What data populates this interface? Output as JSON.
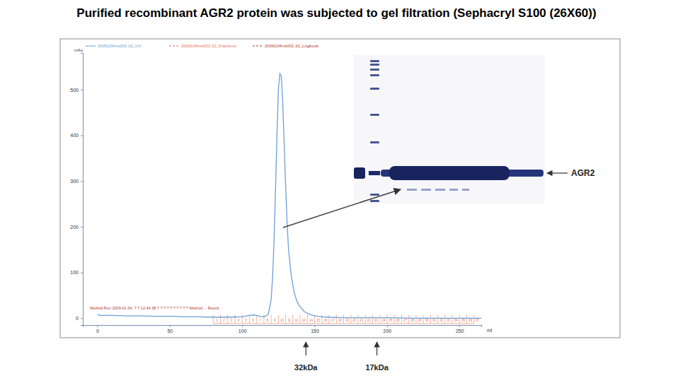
{
  "chart_data": {
    "type": "line",
    "title": "Purified recombinant AGR2 protein was subjected to gel filtration (Sephacryl S100 (26X60))",
    "xlabel": "ml",
    "ylabel": "mAu",
    "x": [
      0,
      2,
      10,
      20,
      30,
      40,
      50,
      60,
      70,
      80,
      90,
      100,
      105,
      108,
      110,
      112,
      114,
      116,
      118,
      120,
      121,
      122,
      123,
      124,
      125,
      126,
      127,
      128,
      129,
      130,
      131,
      132,
      134,
      136,
      138,
      140,
      143,
      146,
      150,
      155,
      160,
      170,
      180,
      200,
      220,
      240,
      260,
      265
    ],
    "series": [
      {
        "name": "2009104ms001:10_UV",
        "color": "#6c9fd6",
        "line_style": "solid",
        "values": [
          8,
          6,
          6,
          5,
          5,
          4,
          4,
          3,
          3,
          2,
          2,
          3,
          6,
          7,
          6,
          4,
          3,
          4,
          8,
          40,
          90,
          170,
          280,
          400,
          500,
          535,
          530,
          470,
          380,
          290,
          210,
          150,
          90,
          55,
          35,
          25,
          14,
          9,
          5,
          3,
          2,
          1,
          1,
          1,
          0,
          0,
          0,
          0
        ]
      }
    ],
    "fractions": {
      "name": "2009104ms001:10_Fractions",
      "color": "#e5734f",
      "line_style": "dashed",
      "x": [
        80,
        85,
        90,
        95,
        100,
        105,
        110,
        115,
        120,
        125,
        130,
        135,
        140,
        145,
        150,
        155,
        160,
        165,
        170,
        175,
        180,
        185,
        190,
        195,
        200,
        205,
        210,
        215,
        220,
        225,
        230,
        235,
        240,
        245,
        250,
        255,
        260
      ],
      "labels": [
        1,
        2,
        3,
        4,
        5,
        6,
        7,
        8,
        9,
        10,
        11,
        12,
        13,
        14,
        15,
        16,
        17,
        18,
        19,
        20,
        21,
        22,
        23,
        24,
        25,
        26,
        27,
        28,
        29,
        30,
        31,
        32,
        33,
        34,
        35,
        36,
        37
      ]
    },
    "logbook": {
      "name": "2009104ms001:10_Logbook",
      "color": "#b03a2e",
      "line_style": "dashed",
      "text": "Method Run 2009-01-04, ? ? 12:44:38 ? ? ? ? ? ? ? ? ? ? Method ... Result"
    },
    "xlim": [
      -10,
      265
    ],
    "ylim": [
      -15,
      580
    ],
    "xticks": [
      0,
      50,
      100,
      150,
      200,
      250
    ],
    "yticks": [
      0,
      100,
      200,
      300,
      400,
      500
    ],
    "grid": false,
    "legend": "upper left",
    "size_markers": [
      {
        "x": 144,
        "label": "32kDa"
      },
      {
        "x": 193,
        "label": "17kDa"
      }
    ],
    "annotations": [
      "AGR2"
    ]
  }
}
